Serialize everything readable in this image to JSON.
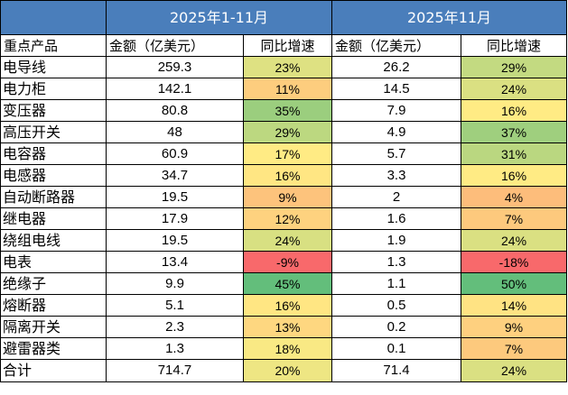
{
  "header": {
    "period1": "2025年1-11月",
    "period2": "2025年11月"
  },
  "columns": {
    "product": "重点产品",
    "amount1": "金额（亿美元）",
    "growth1": "同比增速",
    "amount2": "金额（亿美元）",
    "growth2": "同比增速"
  },
  "rows": [
    {
      "name": "电导线",
      "amount1": "259.3",
      "growth1": "23%",
      "amount2": "26.2",
      "growth2": "29%"
    },
    {
      "name": "电力柜",
      "amount1": "142.1",
      "growth1": "11%",
      "amount2": "14.5",
      "growth2": "24%"
    },
    {
      "name": "变压器",
      "amount1": "80.8",
      "growth1": "35%",
      "amount2": "7.9",
      "growth2": "16%"
    },
    {
      "name": "高压开关",
      "amount1": "48",
      "growth1": "29%",
      "amount2": "4.9",
      "growth2": "37%"
    },
    {
      "name": "电容器",
      "amount1": "60.9",
      "growth1": "17%",
      "amount2": "5.7",
      "growth2": "31%"
    },
    {
      "name": "电感器",
      "amount1": "34.7",
      "growth1": "16%",
      "amount2": "3.3",
      "growth2": "16%"
    },
    {
      "name": "自动断路器",
      "amount1": "19.5",
      "growth1": "9%",
      "amount2": "2",
      "growth2": "4%"
    },
    {
      "name": "继电器",
      "amount1": "17.9",
      "growth1": "12%",
      "amount2": "1.6",
      "growth2": "7%"
    },
    {
      "name": "绕组电线",
      "amount1": "19.5",
      "growth1": "24%",
      "amount2": "1.9",
      "growth2": "24%"
    },
    {
      "name": "电表",
      "amount1": "13.4",
      "growth1": "-9%",
      "amount2": "1.3",
      "growth2": "-18%"
    },
    {
      "name": "绝缘子",
      "amount1": "9.9",
      "growth1": "45%",
      "amount2": "1.1",
      "growth2": "50%"
    },
    {
      "name": "熔断器",
      "amount1": "5.1",
      "growth1": "16%",
      "amount2": "0.5",
      "growth2": "14%"
    },
    {
      "name": "隔离开关",
      "amount1": "2.3",
      "growth1": "13%",
      "amount2": "0.2",
      "growth2": "9%"
    },
    {
      "name": "避雷器类",
      "amount1": "1.3",
      "growth1": "18%",
      "amount2": "0.1",
      "growth2": "7%"
    },
    {
      "name": "合计",
      "amount1": "714.7",
      "growth1": "20%",
      "amount2": "71.4",
      "growth2": "24%"
    }
  ],
  "colors": {
    "header_bg": "#4a7ebb",
    "scale_low": "#f8696b",
    "scale_mid": "#ffeb84",
    "scale_high": "#63be7b"
  }
}
